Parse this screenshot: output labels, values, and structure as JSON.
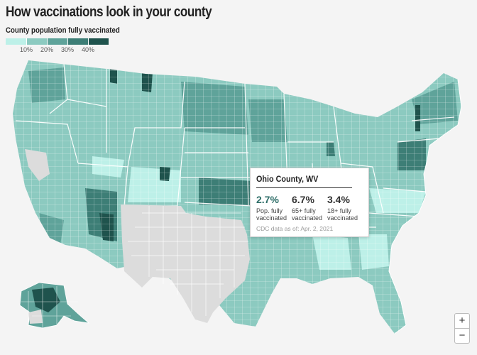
{
  "title": "How vaccinations look in your county",
  "legend": {
    "title": "County population fully vaccinated",
    "colors": [
      "#bdf0e8",
      "#8ccac0",
      "#5fa39a",
      "#3d7e76",
      "#1f534d"
    ],
    "ticks": [
      "10%",
      "20%",
      "30%",
      "40%"
    ]
  },
  "tooltip": {
    "county": "Ohio County, WV",
    "stats": [
      {
        "value": "2.7%",
        "label_lines": [
          "Pop. fully",
          "vaccinated"
        ],
        "color": "#2e6e68"
      },
      {
        "value": "6.7%",
        "label_lines": [
          "65+ fully",
          "vaccinated"
        ],
        "color": "#333333"
      },
      {
        "value": "3.4%",
        "label_lines": [
          "18+ fully",
          "vaccinated"
        ],
        "color": "#333333"
      }
    ],
    "note": "CDC data as of: Apr. 2, 2021"
  },
  "colors": {
    "no_data": "#dcdcdc",
    "county_lines": "#ffffff",
    "background": "#f4f4f4"
  },
  "zoom": {
    "in_label": "+",
    "out_label": "−"
  }
}
